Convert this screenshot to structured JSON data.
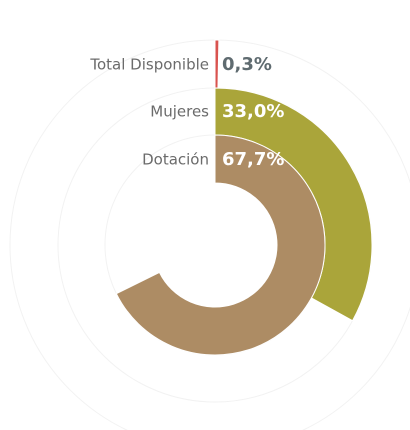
{
  "chart_data": {
    "type": "radial_bar",
    "categories": [
      "Total Disponible",
      "Mujeres",
      "Dotación"
    ],
    "values": [
      0.3,
      33.0,
      67.7
    ],
    "value_labels": [
      "0,3%",
      "33,0%",
      "67,7%"
    ],
    "colors": [
      "#d9534f",
      "#aaa53a",
      "#ad8c64"
    ],
    "xlim": [
      0,
      100
    ]
  }
}
